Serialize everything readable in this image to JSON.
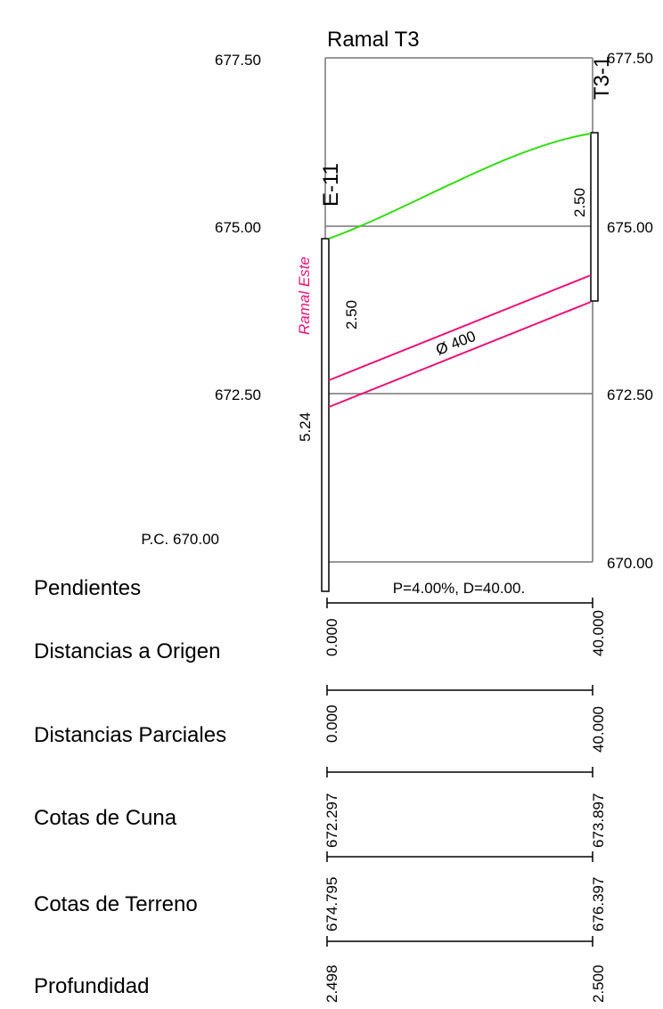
{
  "title": "Ramal T3",
  "elevation_axis": {
    "ticks_left": [
      "677.50",
      "675.00",
      "672.50"
    ],
    "ticks_right": [
      "677.50",
      "675.00",
      "672.50",
      "670.00"
    ],
    "reference": "P.C. 670.00"
  },
  "manholes": {
    "start": {
      "id": "E-11",
      "depth_label": "2.50",
      "total_label": "5.24",
      "branch_label": "Ramal Este"
    },
    "end": {
      "id": "T3-1",
      "depth_label": "2.50"
    }
  },
  "pipe": {
    "diameter_label": "Ø 400",
    "segment_label": "P=4.00%, D=40.00."
  },
  "rows": [
    {
      "label": "Pendientes",
      "start": "",
      "end": ""
    },
    {
      "label": "Distancias a Origen",
      "start": "0.000",
      "end": "40.000"
    },
    {
      "label": "Distancias Parciales",
      "start": "0.000",
      "end": "40.000"
    },
    {
      "label": "Cotas de Cuna",
      "start": "672.297",
      "end": "673.897"
    },
    {
      "label": "Cotas de Terreno",
      "start": "674.795",
      "end": "676.397"
    },
    {
      "label": "Profundidad",
      "start": "2.498",
      "end": "2.500"
    }
  ],
  "colors": {
    "terrain": "#33dd11",
    "pipe": "#ee1177",
    "branch_label": "#ee1177",
    "grid": "#777777"
  }
}
